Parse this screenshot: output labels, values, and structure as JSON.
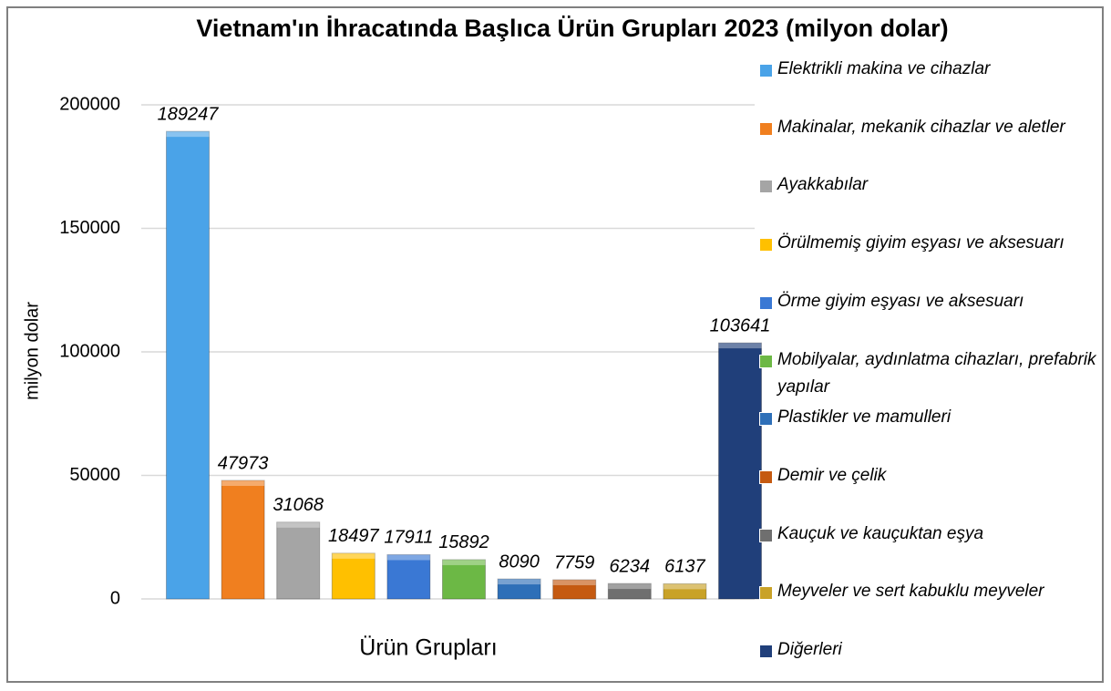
{
  "chart_data": {
    "type": "bar",
    "title": "Vietnam'ın İhracatında Başlıca Ürün Grupları 2023 (milyon dolar)",
    "x_label": "Ürün Grupları",
    "y_label": "milyon dolar",
    "ylim": [
      0,
      200000
    ],
    "yticks": [
      0,
      50000,
      100000,
      150000,
      200000
    ],
    "grid": true,
    "legend": "right",
    "series": [
      {
        "name": "Elektrikli makina ve cihazlar",
        "color": "#4aa3e8",
        "values": [
          189247
        ]
      },
      {
        "name": "Makinalar, mekanik cihazlar ve aletler",
        "color": "#f07f1f",
        "values": [
          47973
        ]
      },
      {
        "name": "Ayakkabılar",
        "color": "#a5a5a5",
        "values": [
          31068
        ]
      },
      {
        "name": "Örülmemiş giyim eşyası ve aksesuarı",
        "color": "#ffc000",
        "values": [
          18497
        ]
      },
      {
        "name": "Örme giyim eşyası ve aksesuarı",
        "color": "#3a78d4",
        "values": [
          17911
        ]
      },
      {
        "name": "Mobilyalar, aydınlatma cihazları, prefabrik yapılar",
        "color": "#6cb845",
        "values": [
          15892
        ]
      },
      {
        "name": "Plastikler ve mamulleri",
        "color": "#2e6fb8",
        "values": [
          8090
        ]
      },
      {
        "name": "Demir ve çelik",
        "color": "#c55a11",
        "values": [
          7759
        ]
      },
      {
        "name": "Kauçuk ve kauçuktan eşya",
        "color": "#6f6f6f",
        "values": [
          6234
        ]
      },
      {
        "name": "Meyveler ve sert kabuklu meyveler",
        "color": "#c9a227",
        "values": [
          6137
        ]
      },
      {
        "name": "Diğerleri",
        "color": "#203f7a",
        "values": [
          103641
        ]
      }
    ]
  }
}
